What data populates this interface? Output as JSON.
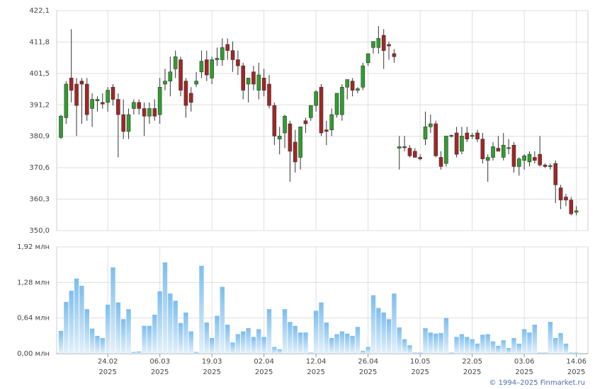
{
  "chart_data": [
    {
      "type": "candlestick",
      "up_color": "#2f9e2f",
      "down_color": "#a32626",
      "grid": true,
      "ylim": [
        350.0,
        422.1
      ],
      "yticks": [
        {
          "value": 350.0,
          "label": "350,0"
        },
        {
          "value": 360.3,
          "label": "360,3"
        },
        {
          "value": 370.6,
          "label": "370,6"
        },
        {
          "value": 380.9,
          "label": "380,9"
        },
        {
          "value": 391.2,
          "label": "391,2"
        },
        {
          "value": 401.5,
          "label": "401,5"
        },
        {
          "value": 411.8,
          "label": "411,8"
        },
        {
          "value": 422.1,
          "label": "422,1"
        }
      ],
      "open": [
        380.5,
        387,
        400,
        398,
        399,
        398,
        390,
        392.5,
        392,
        392,
        397,
        393,
        388,
        382.5,
        390,
        392,
        390,
        387.5,
        390,
        388,
        398,
        399,
        403,
        406,
        399,
        395,
        398,
        402,
        406,
        400,
        406,
        406,
        411,
        409,
        406,
        404,
        398,
        402,
        396,
        400,
        398,
        391,
        380,
        382,
        385,
        379,
        374,
        386,
        387,
        391,
        397,
        383,
        383,
        388,
        388,
        397,
        399,
        396,
        397,
        405,
        410,
        410,
        414,
        411,
        408,
        377,
        377.5,
        377,
        376,
        374,
        380,
        384,
        385,
        374,
        372,
        381,
        382,
        376,
        382,
        381,
        382,
        380,
        373,
        374,
        377,
        374,
        377,
        378,
        371,
        373,
        372.5,
        374,
        375,
        371.5,
        371,
        372,
        364,
        361,
        360,
        356
      ],
      "high": [
        388,
        399,
        416,
        400,
        400,
        400,
        395,
        394,
        395,
        397,
        398,
        395,
        393,
        390,
        393,
        393,
        392,
        392,
        393,
        400,
        403,
        407,
        409,
        407,
        400,
        397,
        402,
        409,
        409,
        407,
        410,
        413,
        413,
        412,
        409,
        405,
        400,
        404,
        405,
        403,
        401,
        392,
        384,
        388,
        386,
        383,
        384,
        387,
        391,
        396,
        398,
        386,
        390,
        395,
        398,
        399,
        400,
        397,
        405,
        408,
        412,
        417,
        416,
        412,
        409.5,
        381,
        381,
        378,
        377,
        375,
        389,
        388,
        386,
        376,
        381,
        381.5,
        384,
        384,
        384,
        382,
        383,
        382,
        375,
        379,
        381,
        382,
        380,
        379,
        374,
        375,
        376,
        376,
        381,
        372,
        372,
        373,
        365,
        362,
        361,
        358
      ],
      "low": [
        380,
        385,
        392,
        381,
        385,
        386,
        384,
        389,
        390,
        389,
        391,
        374,
        380,
        380,
        388,
        388,
        381,
        385,
        386,
        385,
        396,
        394,
        400,
        394,
        387,
        389,
        397,
        400,
        399,
        398,
        404,
        404,
        406,
        402,
        401,
        393,
        392,
        396,
        393,
        394,
        390,
        378,
        375,
        377,
        366,
        369,
        370,
        382,
        386,
        389,
        381,
        378,
        381,
        387,
        386,
        393,
        394,
        395,
        396,
        404,
        408,
        408,
        403,
        406,
        405,
        370,
        376,
        374,
        374,
        373,
        378,
        382,
        374,
        370,
        371,
        380.5,
        374,
        375,
        379,
        380,
        379,
        372,
        366,
        373,
        376,
        373,
        375,
        369,
        368,
        370,
        371,
        372,
        371,
        370.5,
        370,
        359,
        357,
        358,
        355,
        355
      ],
      "close": [
        387.5,
        398,
        396,
        391,
        398,
        388,
        393,
        393,
        391.5,
        396,
        393,
        388,
        382.5,
        388,
        392,
        390,
        387.5,
        390,
        387.5,
        397,
        399,
        402,
        407,
        396,
        391,
        392,
        399,
        405.5,
        401,
        406,
        406.5,
        410,
        409,
        406,
        404,
        396,
        400,
        398,
        401,
        396,
        391,
        381,
        381,
        387.5,
        376,
        372.5,
        384,
        385,
        391,
        395.5,
        382,
        382.5,
        388,
        395,
        397,
        399.5,
        396,
        396.5,
        404,
        408,
        412,
        413,
        409,
        410.5,
        407,
        377.5,
        377.2,
        374.5,
        374,
        373.5,
        384,
        385,
        374.5,
        371,
        381,
        381.2,
        375,
        381,
        380,
        381.2,
        380,
        373.5,
        374,
        377.5,
        376,
        378,
        377.2,
        371,
        373.5,
        374.5,
        375,
        373,
        371.5,
        371,
        371.3,
        365,
        360,
        360,
        355.5,
        356.5
      ]
    },
    {
      "type": "bar",
      "color": "#8cc6f0",
      "grid": true,
      "ylim": [
        0,
        1.92
      ],
      "yticks": [
        {
          "value": 0,
          "label": "0,00 млн"
        },
        {
          "value": 0.64,
          "label": "0,64 млн"
        },
        {
          "value": 1.28,
          "label": "1,28 млн"
        },
        {
          "value": 1.92,
          "label": "1,92 млн"
        }
      ],
      "categories": [
        null,
        null,
        null,
        null,
        null,
        null,
        null,
        null,
        null,
        "24.02\n2025",
        null,
        null,
        null,
        null,
        null,
        null,
        null,
        null,
        null,
        "06.03\n2025",
        null,
        null,
        null,
        null,
        null,
        null,
        null,
        null,
        null,
        "19.03\n2025",
        null,
        null,
        null,
        null,
        null,
        null,
        null,
        null,
        null,
        "02.04\n2025",
        null,
        null,
        null,
        null,
        null,
        null,
        null,
        null,
        null,
        "12.04\n2025",
        null,
        null,
        null,
        null,
        null,
        null,
        null,
        null,
        null,
        "26.04\n2025",
        null,
        null,
        null,
        null,
        null,
        null,
        null,
        null,
        null,
        "10.05\n2025",
        null,
        null,
        null,
        null,
        null,
        null,
        null,
        null,
        null,
        "22.05\n2025",
        null,
        null,
        null,
        null,
        null,
        null,
        null,
        null,
        null,
        "03.06\n2025",
        null,
        null,
        null,
        null,
        null,
        null,
        null,
        null,
        null,
        "14.06\n2025"
      ],
      "values": [
        0.41,
        0.93,
        1.13,
        1.35,
        1.22,
        0.8,
        0.45,
        0.32,
        0.28,
        0.88,
        1.55,
        0.92,
        0.62,
        0.8,
        0.03,
        0.04,
        0.5,
        0.5,
        0.7,
        1.12,
        1.64,
        1.08,
        0.95,
        0.55,
        0.74,
        0.4,
        0.03,
        1.58,
        0.56,
        0.28,
        0.68,
        1.2,
        0.52,
        0.2,
        0.35,
        0.4,
        0.46,
        0.3,
        0.44,
        0.3,
        0.8,
        0.12,
        0.08,
        0.8,
        0.57,
        0.5,
        0.38,
        0.38,
        0.02,
        0.77,
        0.92,
        0.56,
        0.28,
        0.35,
        0.4,
        0.36,
        0.32,
        0.48,
        0.05,
        0.12,
        1.05,
        0.82,
        0.74,
        0.62,
        1.08,
        0.47,
        0.26,
        0.15,
        0.02,
        0.02,
        0.46,
        0.38,
        0.36,
        0.37,
        0.64,
        0.02,
        0.3,
        0.35,
        0.3,
        0.26,
        0.18,
        0.34,
        0.35,
        0.22,
        0.14,
        0.24,
        0.1,
        0.28,
        0.18,
        0.44,
        0.38,
        0.52,
        0.02,
        0.02,
        0.57,
        0.28,
        0.37,
        0.18,
        0.02,
        0.02
      ]
    }
  ],
  "credit": "© 1994–2025 Finmarket.ru"
}
